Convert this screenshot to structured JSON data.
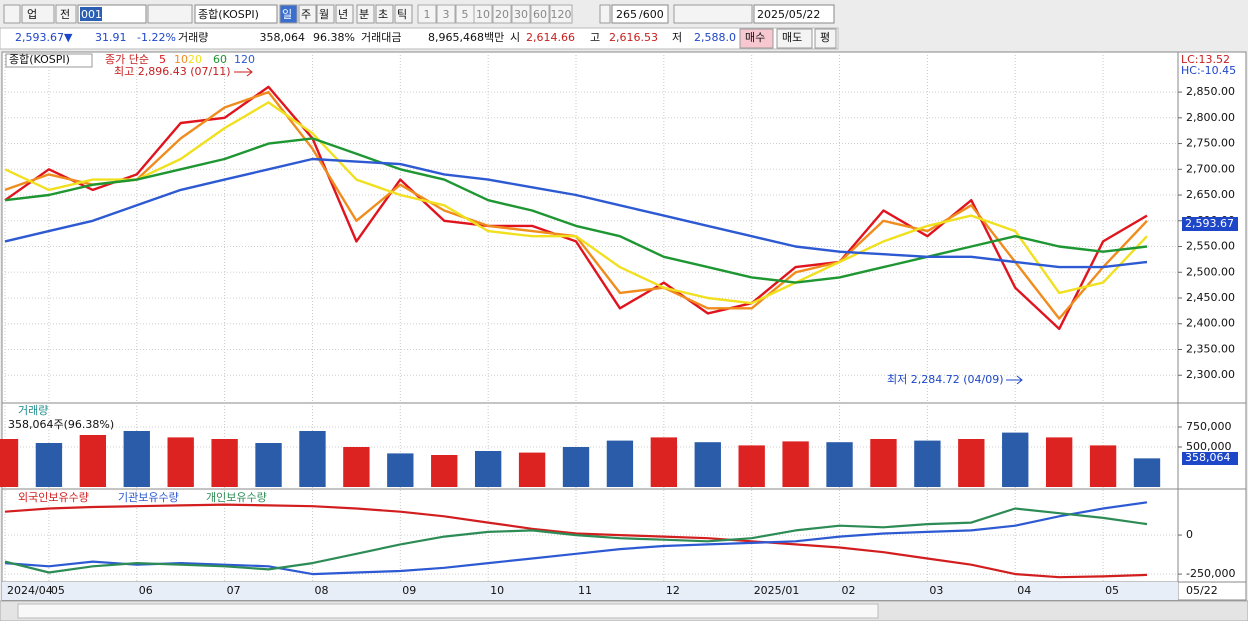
{
  "toolbar": {
    "market": "업",
    "prefix": "전",
    "code": "001",
    "name": "종합(KOSPI)",
    "periods": [
      "일",
      "주",
      "월",
      "년",
      "분",
      "초",
      "틱"
    ],
    "intervals": [
      "1",
      "3",
      "5",
      "10",
      "20",
      "30",
      "60",
      "120"
    ],
    "count": "265",
    "max": "/600",
    "date": "2025/05/22"
  },
  "quote": {
    "price": "2,593.67▼",
    "change": "31.91",
    "rate": "-1.22%",
    "volume_label": "거래량",
    "volume": "358,064",
    "volume_rate": "96.38%",
    "amount_label": "거래대금",
    "amount": "8,965,468백만",
    "open_label": "시",
    "open": "2,614.66",
    "high_label": "고",
    "high": "2,616.53",
    "low_label": "저",
    "low": "2,588.0",
    "buy": "매수",
    "sell": "매도",
    "avg": "평"
  },
  "chart_data": [
    {
      "type": "line",
      "title": "종합(KOSPI)",
      "subtitle": "종가 단순",
      "categories": [
        "2024/04",
        "05",
        null,
        "06",
        null,
        "07",
        null,
        "08",
        null,
        "09",
        null,
        "10",
        null,
        "11",
        null,
        "12",
        null,
        "2025/01",
        null,
        "02",
        null,
        "03",
        null,
        "04",
        null,
        "05",
        null
      ],
      "series": [
        {
          "name": "5",
          "color": "#e0141e",
          "values": [
            2640,
            2700,
            2660,
            2690,
            2790,
            2800,
            2860,
            2760,
            2560,
            2680,
            2600,
            2590,
            2590,
            2560,
            2430,
            2480,
            2420,
            2440,
            2510,
            2520,
            2620,
            2570,
            2640,
            2470,
            2390,
            2560,
            2610
          ]
        },
        {
          "name": "10",
          "color": "#f08c1e",
          "values": [
            2660,
            2690,
            2670,
            2680,
            2760,
            2820,
            2850,
            2740,
            2600,
            2670,
            2620,
            2590,
            2580,
            2570,
            2460,
            2470,
            2430,
            2430,
            2500,
            2520,
            2600,
            2580,
            2630,
            2520,
            2410,
            2510,
            2600
          ]
        },
        {
          "name": "20",
          "color": "#f0e020",
          "values": [
            2700,
            2660,
            2680,
            2680,
            2720,
            2780,
            2830,
            2770,
            2680,
            2650,
            2630,
            2580,
            2570,
            2570,
            2510,
            2470,
            2450,
            2440,
            2480,
            2520,
            2560,
            2590,
            2610,
            2580,
            2460,
            2480,
            2570
          ]
        },
        {
          "name": "60",
          "color": "#1e9632",
          "values": [
            2640,
            2650,
            2670,
            2680,
            2700,
            2720,
            2750,
            2760,
            2730,
            2700,
            2680,
            2640,
            2620,
            2590,
            2570,
            2530,
            2510,
            2490,
            2480,
            2490,
            2510,
            2530,
            2550,
            2570,
            2550,
            2540,
            2550
          ]
        },
        {
          "name": "120",
          "color": "#2d5ad2",
          "values": [
            2560,
            2580,
            2600,
            2630,
            2660,
            2680,
            2700,
            2720,
            2715,
            2710,
            2690,
            2680,
            2665,
            2650,
            2630,
            2610,
            2590,
            2570,
            2550,
            2540,
            2535,
            2530,
            2530,
            2520,
            2510,
            2510,
            2520
          ]
        }
      ],
      "ylim": [
        2248,
        2922
      ],
      "yticks": [
        {
          "value": 2300,
          "label": "2,300.00"
        },
        {
          "value": 2350,
          "label": "2,350.00"
        },
        {
          "value": 2400,
          "label": "2,400.00"
        },
        {
          "value": 2450,
          "label": "2,450.00"
        },
        {
          "value": 2500,
          "label": "2,500.00"
        },
        {
          "value": 2550,
          "label": "2,550.00"
        },
        {
          "value": 2600,
          "label": "2,600.00"
        },
        {
          "value": 2650,
          "label": "2,650.00"
        },
        {
          "value": 2700,
          "label": "2,700.00"
        },
        {
          "value": 2750,
          "label": "2,750.00"
        },
        {
          "value": 2800,
          "label": "2,800.00"
        },
        {
          "value": 2850,
          "label": "2,850.00"
        }
      ],
      "grid": true,
      "annotations": [
        "최고 2,896.43 (07/11)",
        "최저 2,284.72 (04/09)"
      ],
      "last_price": "2,593.67",
      "lc": "LC:13.52",
      "hc": "HC:-10.45",
      "end_label": "05/22"
    },
    {
      "type": "bar",
      "title": "거래량",
      "subtitle": "358,064주(96.38%)",
      "values": [
        600000,
        550000,
        650000,
        700000,
        620000,
        600000,
        550000,
        700000,
        500000,
        420000,
        400000,
        450000,
        430000,
        500000,
        580000,
        620000,
        560000,
        520000,
        570000,
        560000,
        600000,
        580000,
        600000,
        680000,
        620000,
        520000,
        358064
      ],
      "colors": [
        "#d22",
        "#2a5caa",
        "#d22",
        "#2a5caa",
        "#d22",
        "#d22",
        "#2a5caa",
        "#2a5caa",
        "#d22",
        "#2a5caa",
        "#d22",
        "#2a5caa",
        "#d22",
        "#2a5caa",
        "#2a5caa",
        "#d22",
        "#2a5caa",
        "#d22",
        "#d22",
        "#2a5caa",
        "#d22",
        "#2a5caa",
        "#d22",
        "#2a5caa",
        "#d22",
        "#d22",
        "#2a5caa"
      ],
      "ylim": [
        0,
        1000000
      ],
      "yticks": [
        {
          "value": 500000,
          "label": "500,000"
        },
        {
          "value": 750000,
          "label": "750,000"
        }
      ],
      "grid": true,
      "last_value": "358,064",
      "last_rate": "96.38%"
    },
    {
      "type": "line",
      "series": [
        {
          "name": "외국인보유수량",
          "color": "#d21e1e",
          "values": [
            150000,
            170000,
            180000,
            185000,
            190000,
            195000,
            190000,
            185000,
            170000,
            150000,
            120000,
            80000,
            40000,
            10000,
            0,
            -10000,
            -20000,
            -40000,
            -60000,
            -80000,
            -110000,
            -150000,
            -190000,
            -250000,
            -270000,
            -265000,
            -255000
          ]
        },
        {
          "name": "기관보유수량",
          "color": "#2d5ad2",
          "values": [
            -180000,
            -200000,
            -170000,
            -190000,
            -180000,
            -190000,
            -200000,
            -250000,
            -240000,
            -230000,
            -210000,
            -180000,
            -150000,
            -120000,
            -90000,
            -70000,
            -60000,
            -50000,
            -40000,
            -10000,
            10000,
            20000,
            30000,
            60000,
            120000,
            170000,
            210000
          ]
        },
        {
          "name": "개인보유수량",
          "color": "#2d8c55",
          "values": [
            -170000,
            -240000,
            -200000,
            -180000,
            -190000,
            -200000,
            -220000,
            -180000,
            -120000,
            -60000,
            -10000,
            20000,
            30000,
            0,
            -20000,
            -30000,
            -40000,
            -20000,
            30000,
            60000,
            50000,
            70000,
            80000,
            170000,
            140000,
            110000,
            70000
          ]
        }
      ],
      "ylim": [
        -288000,
        276000
      ],
      "yticks": [
        0,
        {
          "value": -250000,
          "label": "-250,000"
        }
      ],
      "grid": true
    }
  ]
}
